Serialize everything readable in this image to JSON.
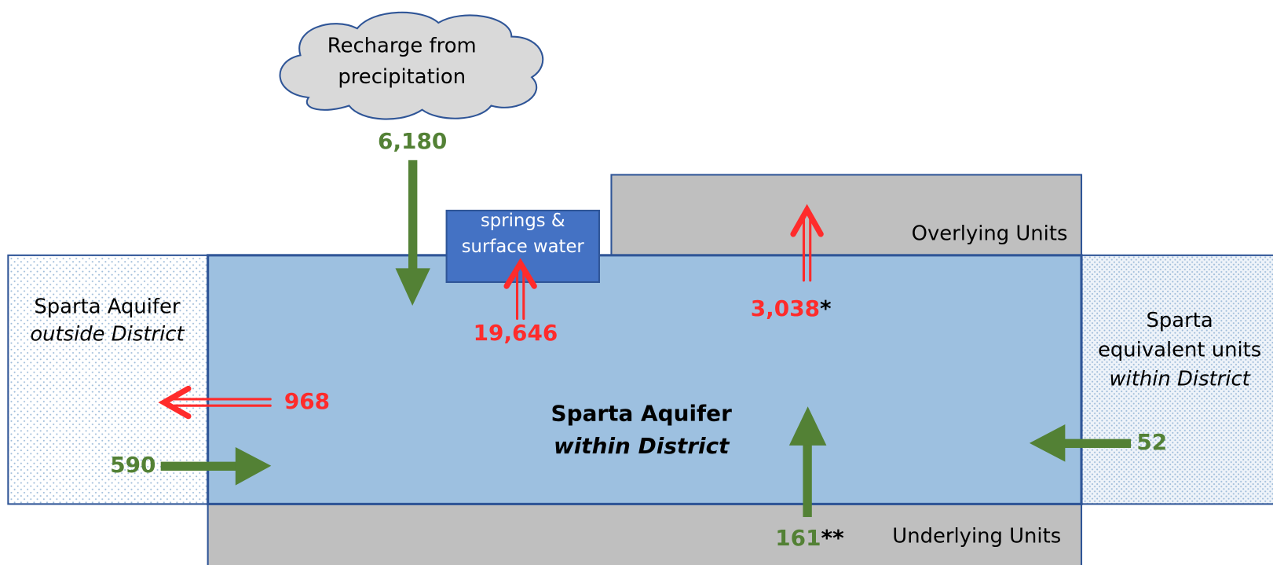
{
  "cloud": {
    "lines": [
      "Recharge from",
      "precipitation"
    ]
  },
  "springs": {
    "lines": [
      "springs &",
      "surface water"
    ]
  },
  "overlying": {
    "label": "Overlying Units"
  },
  "underlying": {
    "label": "Underlying Units"
  },
  "outside": {
    "lines": [
      "Sparta Aquifer",
      "outside District"
    ]
  },
  "equivalent": {
    "lines": [
      "Sparta",
      "equivalent units",
      "within District"
    ]
  },
  "main": {
    "lines": [
      "Sparta Aquifer",
      "within District"
    ]
  },
  "flows": {
    "recharge": {
      "label": "6,180"
    },
    "springs": {
      "label": "19,646"
    },
    "overlying": {
      "label": "3,038",
      "note": "*"
    },
    "outside_out": {
      "label": "968"
    },
    "outside_in": {
      "label": "590"
    },
    "underlying": {
      "label": "161",
      "note": "**"
    },
    "equivalent": {
      "label": "52"
    }
  }
}
